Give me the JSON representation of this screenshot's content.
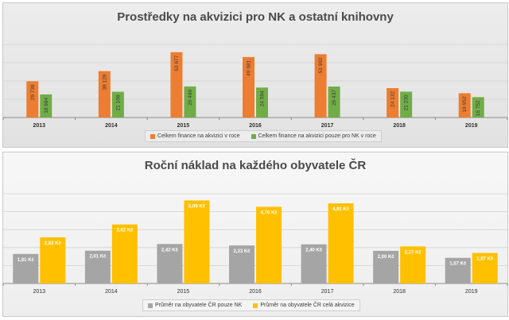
{
  "chart_data": [
    {
      "type": "bar",
      "title": "Prostředky na akvizici pro NK a ostatní knihovny",
      "categories": [
        "2013",
        "2014",
        "2015",
        "2016",
        "2017",
        "2018",
        "2019"
      ],
      "series": [
        {
          "name": "Celkem finance na akvizici v roce",
          "color": "#ED7D31",
          "values": [
            29739,
            38129,
            53677,
            49681,
            51992,
            24132,
            19952
          ],
          "labels": [
            "29 739",
            "38 129",
            "53 677",
            "49 681",
            "51 992",
            "24 132",
            "19 952"
          ]
        },
        {
          "name": "Celkem finance na akvizici pouze pro NK v roce",
          "color": "#70AD47",
          "values": [
            18984,
            21169,
            25499,
            24594,
            25437,
            21230,
            16752
          ],
          "labels": [
            "18 984",
            "21 169",
            "25 499",
            "24 594",
            "25 437",
            "21 230",
            "16 752"
          ]
        }
      ],
      "ylim": [
        0,
        60000
      ],
      "legend": "bottom"
    },
    {
      "type": "bar",
      "title": "Roční náklad na každého obyvatele ČR",
      "categories": [
        "2013",
        "2014",
        "2015",
        "2016",
        "2017",
        "2018",
        "2019"
      ],
      "series": [
        {
          "name": "Průměr na obyvatele ČR pouze NK",
          "color": "#A5A5A5",
          "values": [
            1.81,
            2.01,
            2.42,
            2.33,
            2.4,
            2.0,
            1.57
          ],
          "labels": [
            "1,81 Kč",
            "2,01 Kč",
            "2,42 Kč",
            "2,33 Kč",
            "2,40 Kč",
            "2,00 Kč",
            "1,57 Kč"
          ]
        },
        {
          "name": "Průměr na obyvatele ČR celá akvizice",
          "color": "#FFC000",
          "values": [
            2.83,
            3.62,
            5.09,
            4.7,
            4.91,
            2.27,
            1.87
          ],
          "labels": [
            "2,83 Kč",
            "3,62 Kč",
            "5,09 Kč",
            "4,70 Kč",
            "4,91 Kč",
            "2,27 Kč",
            "1,87 Kč"
          ]
        }
      ],
      "ylim": [
        0,
        5.5
      ],
      "legend": "bottom"
    }
  ]
}
